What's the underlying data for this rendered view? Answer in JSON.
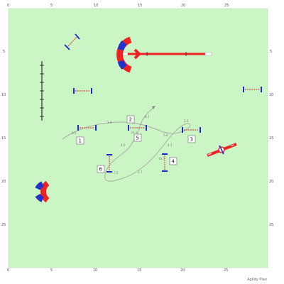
{
  "axes": {
    "top": [
      "0",
      "5",
      "10",
      "15",
      "20",
      "25"
    ],
    "bottom": [
      "0",
      "5",
      "10",
      "15",
      "20",
      "25"
    ],
    "left": [
      "5",
      "10",
      "15",
      "20",
      "25"
    ],
    "right": [
      "5",
      "10",
      "15",
      "20",
      "25"
    ]
  },
  "obstacle_numbers": [
    "1",
    "2",
    "3",
    "4",
    "5",
    "6"
  ],
  "path_labels": [
    "8.5",
    "2.3",
    "8.1",
    "5.0",
    "2.4",
    "4.1",
    "10.5",
    "2.7",
    "7.5",
    "4.0",
    "10.3"
  ],
  "brand": "Agility Plan",
  "colors": {
    "field": "#ccf5c5",
    "jump_pole": "#d07060",
    "wing_blue": "#1a2ad0",
    "tunnel_red": "#ee2222",
    "tunnel_blue": "#2233cc",
    "path": "#aaaaaa"
  }
}
